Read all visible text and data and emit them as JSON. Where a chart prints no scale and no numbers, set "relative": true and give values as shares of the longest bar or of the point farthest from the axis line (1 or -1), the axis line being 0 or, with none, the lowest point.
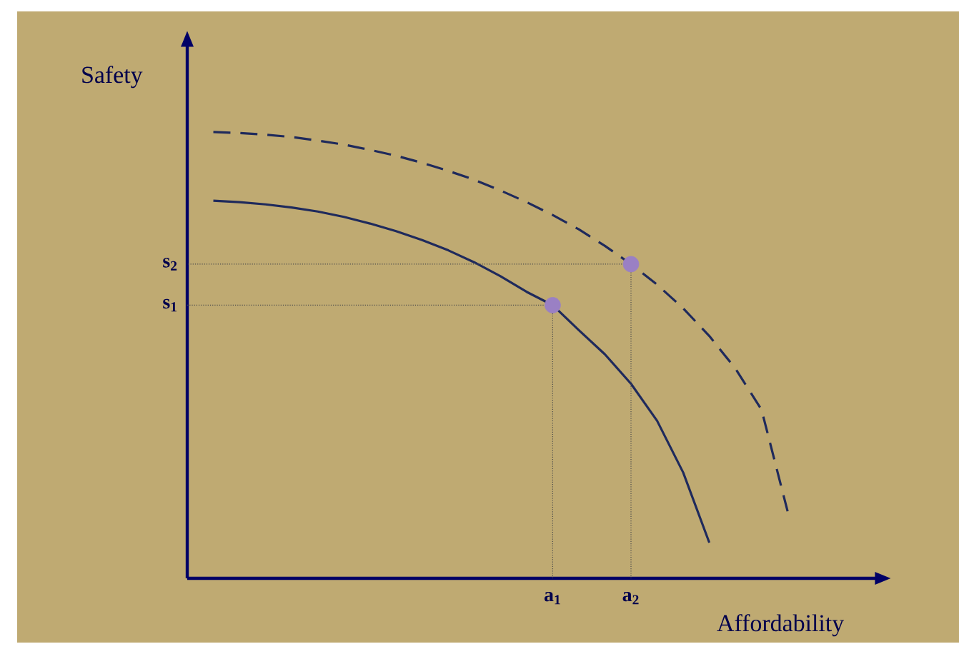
{
  "chart_data": {
    "type": "line",
    "relative": true,
    "xlabel": "Affordability",
    "ylabel": "Safety",
    "tick_labels": "x",
    "categories": [
      null,
      null,
      null,
      null,
      null,
      null,
      null,
      null,
      null,
      null,
      null,
      null,
      null,
      "a$_{1}$",
      null,
      null,
      "a$_{2}$",
      null,
      null,
      null,
      null,
      null,
      null,
      null,
      null,
      null
    ],
    "series": [
      {
        "color": "#1f2a5c",
        "line_style": "solid",
        "values": [
          0.846,
          0.843,
          0.838,
          0.831,
          0.822,
          0.81,
          0.795,
          0.778,
          0.758,
          0.735,
          0.708,
          0.677,
          0.642,
          0.612,
          0.556,
          0.502,
          0.436,
          0.353,
          0.237,
          0.08,
          null,
          null,
          null,
          null,
          null,
          null
        ]
      },
      {
        "color": "#1f2a5c",
        "line_style": "dashed",
        "values": [
          1.0,
          0.998,
          0.994,
          0.989,
          0.981,
          0.972,
          0.96,
          0.947,
          0.931,
          0.913,
          0.893,
          0.869,
          0.843,
          0.814,
          0.782,
          0.745,
          0.704,
          0.658,
          0.605,
          0.543,
          0.47,
          0.378,
          0.15,
          null,
          null,
          null
        ]
      },
      {
        "type": "scatter",
        "color": "#9a80c4",
        "marker": "circle",
        "values": [
          null,
          null,
          null,
          null,
          null,
          null,
          null,
          null,
          null,
          null,
          null,
          null,
          null,
          0.612,
          null,
          null,
          0.704,
          null,
          null,
          null,
          null,
          null,
          null,
          null,
          null,
          null
        ]
      }
    ],
    "annotations": [
      "s$_{1}$",
      "s$_{2}$"
    ]
  }
}
